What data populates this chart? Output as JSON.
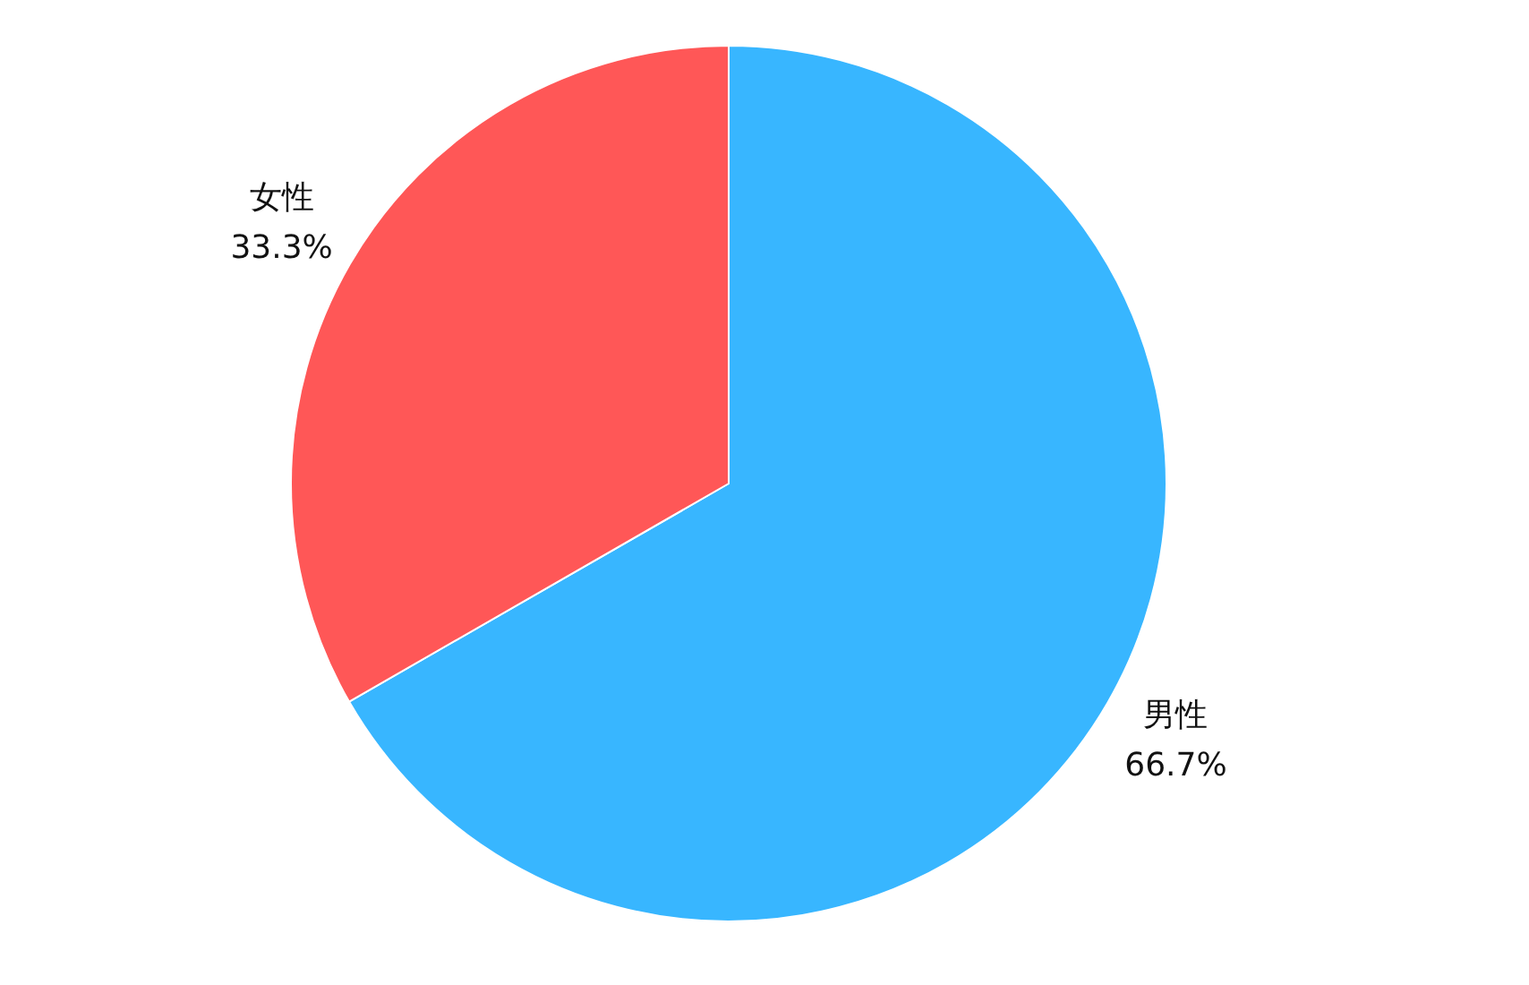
{
  "chart_data": {
    "type": "pie",
    "categories": [
      "男性",
      "女性"
    ],
    "values": [
      66.7,
      33.3
    ],
    "colors": [
      "#38b6ff",
      "#ff5757"
    ],
    "value_labels": [
      "66.7%",
      "33.3%"
    ],
    "legend": false
  }
}
